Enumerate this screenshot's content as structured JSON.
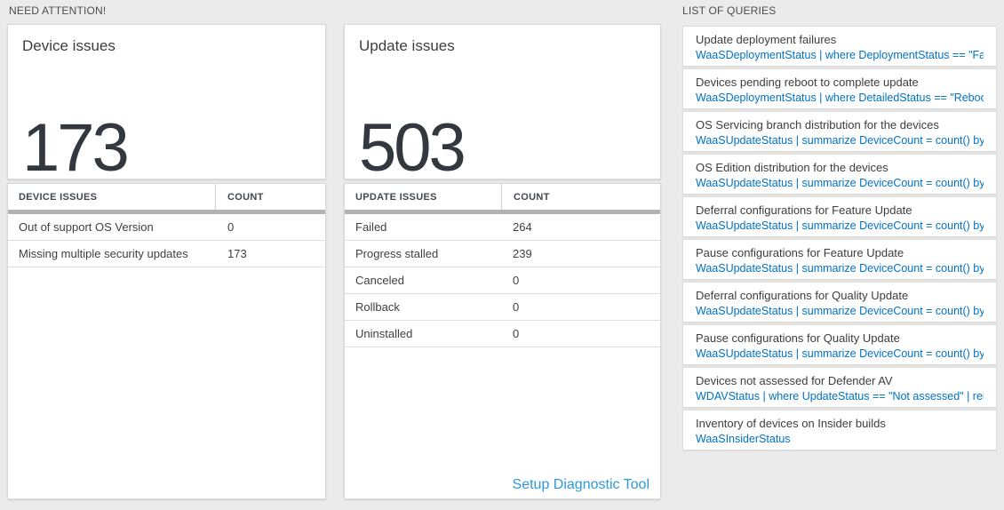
{
  "colors": {
    "bg": "#ebebeb",
    "accent": "#0072c6",
    "link": "#2e9ad8",
    "bar": "#b3b3b3"
  },
  "need_attention": {
    "label": "NEED ATTENTION!",
    "cards": [
      {
        "title": "Device issues",
        "count": "173",
        "table": {
          "columns": [
            "DEVICE ISSUES",
            "COUNT"
          ],
          "rows": [
            {
              "label": "Out of support OS Version",
              "count": "0"
            },
            {
              "label": "Missing multiple security updates",
              "count": "173"
            }
          ]
        }
      },
      {
        "title": "Update issues",
        "count": "503",
        "table": {
          "columns": [
            "UPDATE ISSUES",
            "COUNT"
          ],
          "rows": [
            {
              "label": "Failed",
              "count": "264"
            },
            {
              "label": "Progress stalled",
              "count": "239"
            },
            {
              "label": "Canceled",
              "count": "0"
            },
            {
              "label": "Rollback",
              "count": "0"
            },
            {
              "label": "Uninstalled",
              "count": "0"
            }
          ]
        },
        "footer_link": "Setup Diagnostic Tool"
      }
    ]
  },
  "queries": {
    "label": "LIST OF QUERIES",
    "items": [
      {
        "title": "Update deployment failures",
        "query": "WaaSDeploymentStatus | where DeploymentStatus == \"Failed\" |..."
      },
      {
        "title": "Devices pending reboot to complete update",
        "query": "WaaSDeploymentStatus | where DetailedStatus == \"Reboot pend..."
      },
      {
        "title": "OS Servicing branch distribution for the devices",
        "query": "WaaSUpdateStatus | summarize DeviceCount = count() by OSSer..."
      },
      {
        "title": "OS Edition distribution for the devices",
        "query": "WaaSUpdateStatus | summarize DeviceCount = count() by OSEdit..."
      },
      {
        "title": "Deferral configurations for Feature Update",
        "query": "WaaSUpdateStatus | summarize DeviceCount = count() by Featur..."
      },
      {
        "title": "Pause configurations for Feature Update",
        "query": "WaaSUpdateStatus | summarize DeviceCount = count() by Featur..."
      },
      {
        "title": "Deferral configurations for Quality Update",
        "query": "WaaSUpdateStatus | summarize DeviceCount = count() by Qualit..."
      },
      {
        "title": "Pause configurations for Quality Update",
        "query": "WaaSUpdateStatus | summarize DeviceCount = count() by Qualit..."
      },
      {
        "title": "Devices not assessed for Defender AV",
        "query": "WDAVStatus | where UpdateStatus == \"Not assessed\" | render ta..."
      },
      {
        "title": "Inventory of devices on Insider builds",
        "query": "WaaSInsiderStatus"
      }
    ]
  }
}
